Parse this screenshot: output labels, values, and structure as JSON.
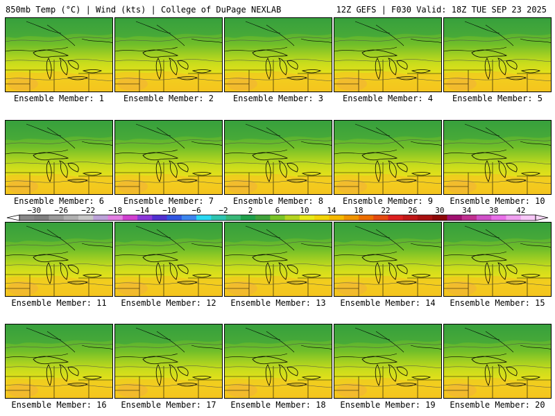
{
  "header": {
    "left": "850mb Temp (°C) | Wind (kts) | College of DuPage NEXLAB",
    "right": "12Z GEFS | F030 Valid: 18Z TUE SEP 23 2025"
  },
  "colorbar": {
    "labels": [
      "−30",
      "−26",
      "−22",
      "−18",
      "−14",
      "−10",
      "−6",
      "−2",
      "2",
      "6",
      "10",
      "14",
      "18",
      "22",
      "26",
      "30",
      "34",
      "38",
      "42"
    ],
    "colors": [
      "#888888",
      "#7f7f7f",
      "#9a9a9a",
      "#b0b0b0",
      "#c8c8c8",
      "#bca2d8",
      "#e27fe2",
      "#d040d0",
      "#8a38d8",
      "#5030d0",
      "#2f56e0",
      "#3d86ee",
      "#2ad8f2",
      "#2ec4b0",
      "#38b878",
      "#1f9f4a",
      "#3fa23a",
      "#7ac428",
      "#b4d420",
      "#e8e818",
      "#f2d408",
      "#f5b800",
      "#f09400",
      "#ec6e00",
      "#e44a10",
      "#dc2020",
      "#c01818",
      "#a81010",
      "#8c0808",
      "#a01070",
      "#c03090",
      "#d050c8",
      "#e870e8",
      "#f0a0f0",
      "#f8c8f8"
    ]
  },
  "members": [
    {
      "label": "Ensemble Member: 1"
    },
    {
      "label": "Ensemble Member: 2"
    },
    {
      "label": "Ensemble Member: 3"
    },
    {
      "label": "Ensemble Member: 4"
    },
    {
      "label": "Ensemble Member: 5"
    },
    {
      "label": "Ensemble Member: 6"
    },
    {
      "label": "Ensemble Member: 7"
    },
    {
      "label": "Ensemble Member: 8"
    },
    {
      "label": "Ensemble Member: 9"
    },
    {
      "label": "Ensemble Member: 10"
    },
    {
      "label": "Ensemble Member: 11"
    },
    {
      "label": "Ensemble Member: 12"
    },
    {
      "label": "Ensemble Member: 13"
    },
    {
      "label": "Ensemble Member: 14"
    },
    {
      "label": "Ensemble Member: 15"
    },
    {
      "label": "Ensemble Member: 16"
    },
    {
      "label": "Ensemble Member: 17"
    },
    {
      "label": "Ensemble Member: 18"
    },
    {
      "label": "Ensemble Member: 19"
    },
    {
      "label": "Ensemble Member: 20"
    }
  ]
}
